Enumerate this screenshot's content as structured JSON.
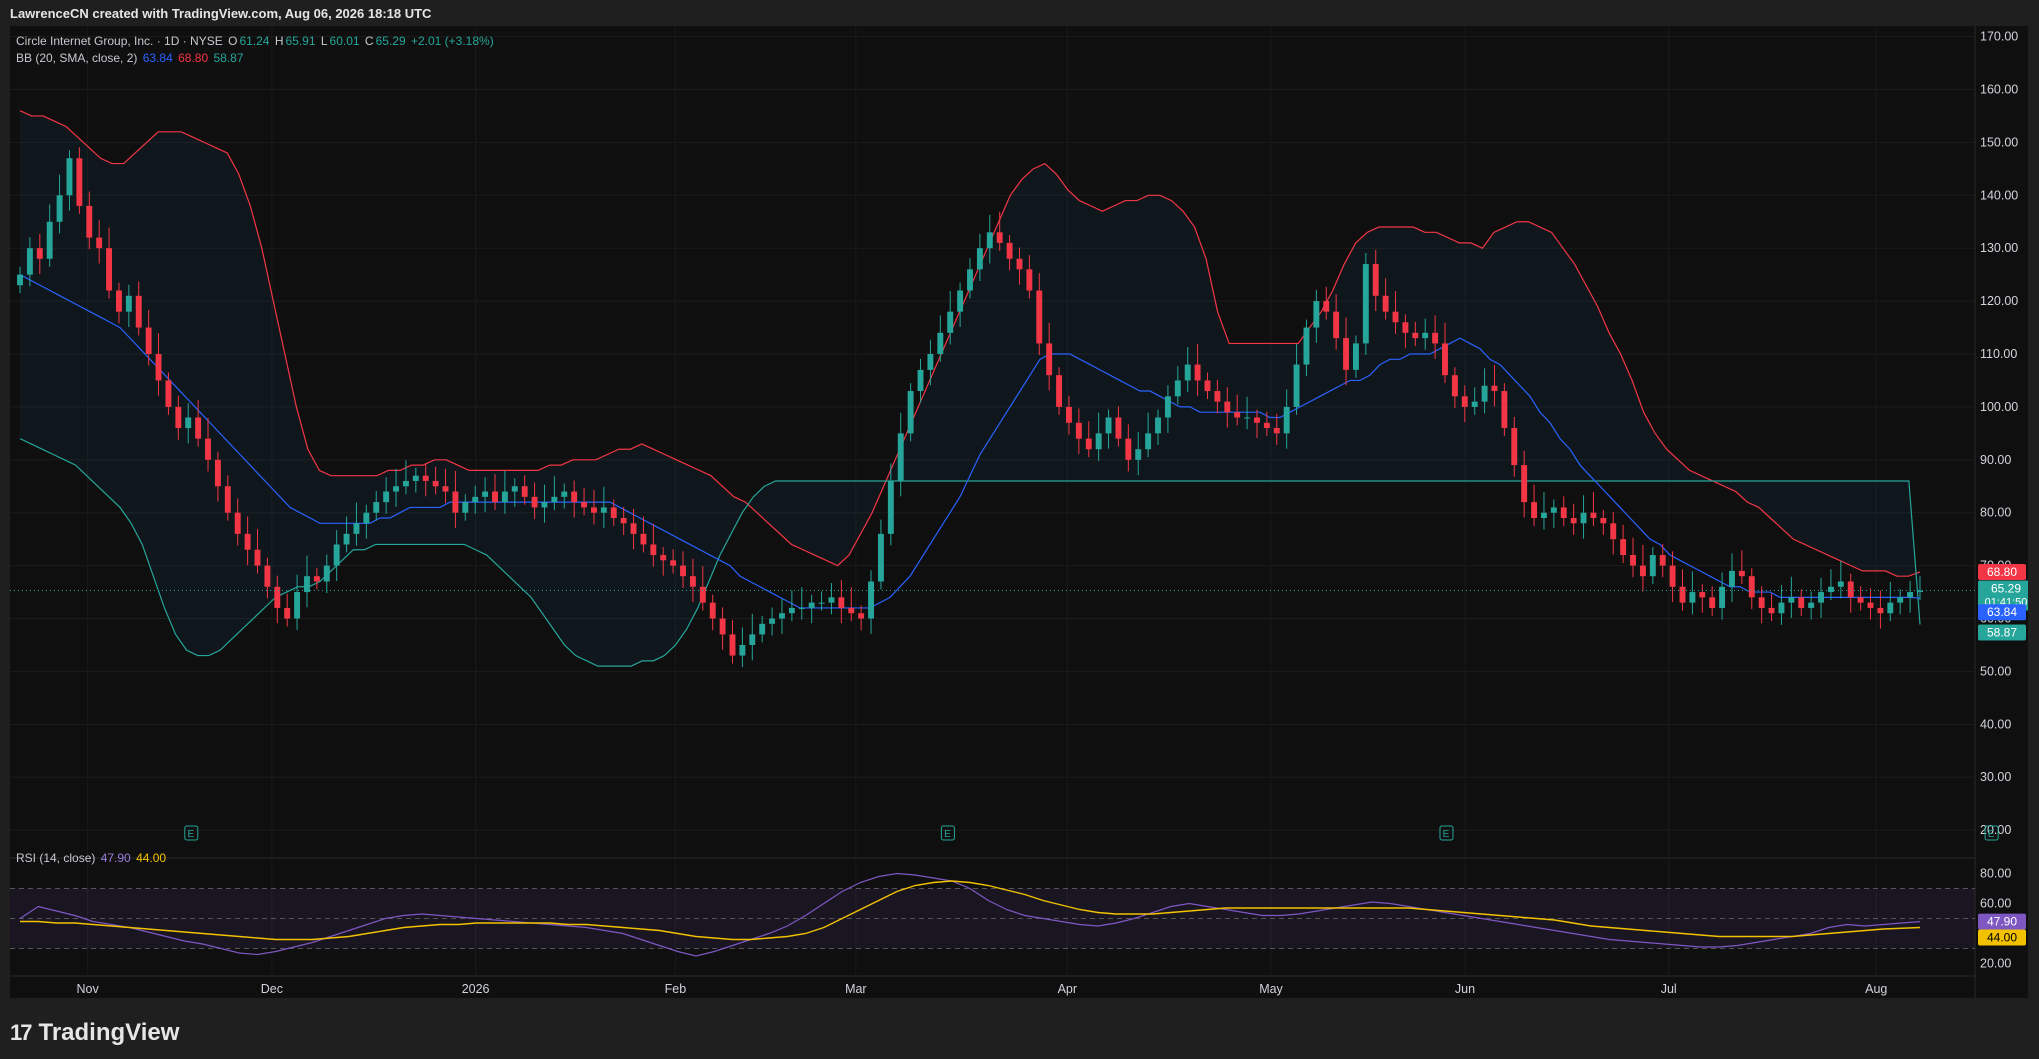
{
  "header": {
    "credit": "LawrenceCN created with TradingView.com, Aug 06, 2026 18:18 UTC"
  },
  "legend": {
    "symbol": "Circle Internet Group, Inc. · 1D · NYSE",
    "o_label": "O",
    "o": "61.24",
    "h_label": "H",
    "h": "65.91",
    "l_label": "L",
    "l": "60.01",
    "c_label": "C",
    "c": "65.29",
    "change": "+2.01 (+3.18%)",
    "bb_label": "BB (20, SMA, close, 2)",
    "bb_basis": "63.84",
    "bb_upper": "68.80",
    "bb_lower": "58.87",
    "rsi_label": "RSI (14, close)",
    "rsi": "47.90",
    "rsi_ma": "44.00"
  },
  "price_tags": {
    "upper": "68.80",
    "last": "65.29",
    "countdown": "01:41:50",
    "basis": "63.84",
    "lower": "58.87",
    "rsi": "47.90",
    "rsi_ma": "44.00"
  },
  "brand": {
    "name": "TradingView"
  },
  "colors": {
    "up": "#26a69a",
    "down": "#f23645",
    "basis": "#2962ff",
    "upper": "#f23645",
    "lower": "#26a69a",
    "rsi": "#7e57c2",
    "rsi_ma": "#f2c200",
    "bg": "#0f0f0f"
  },
  "chart_data": [
    {
      "type": "candlestick",
      "title": "Circle Internet Group, Inc. · 1D · NYSE",
      "x_labels": [
        "Nov",
        "Dec",
        "2026",
        "Feb",
        "Mar",
        "Apr",
        "May",
        "Jun",
        "Jul",
        "Aug"
      ],
      "y_ticks": [
        20,
        30,
        40,
        50,
        60,
        70,
        80,
        90,
        100,
        110,
        120,
        130,
        140,
        150,
        160,
        170
      ],
      "ylim": [
        17,
        172
      ],
      "grid": true,
      "event_markers": [
        "Nov",
        "Mar",
        "May",
        "Aug"
      ],
      "event_marker_glyph": "E",
      "close": [
        125,
        130,
        128,
        135,
        140,
        147,
        138,
        132,
        130,
        122,
        118,
        121,
        115,
        110,
        105,
        100,
        96,
        98,
        94,
        90,
        85,
        80,
        76,
        73,
        70,
        66,
        62,
        60,
        65,
        68,
        67,
        70,
        74,
        76,
        78,
        80,
        82,
        84,
        85,
        86,
        87,
        86,
        85,
        84,
        80,
        82,
        83,
        84,
        82,
        84,
        85,
        83,
        81,
        82,
        83,
        84,
        82,
        81,
        80,
        81,
        79,
        78,
        76,
        74,
        72,
        71,
        70,
        68,
        66,
        63,
        60,
        57,
        53,
        55,
        57,
        59,
        60,
        61,
        62,
        62,
        63,
        63,
        64,
        62,
        61,
        60,
        67,
        76,
        86,
        95,
        103,
        107,
        110,
        114,
        118,
        122,
        126,
        130,
        133,
        131,
        128,
        126,
        122,
        112,
        106,
        100,
        97,
        94,
        92,
        95,
        98,
        94,
        90,
        92,
        95,
        98,
        102,
        105,
        108,
        105,
        103,
        101,
        99,
        98,
        98,
        97,
        96,
        95,
        100,
        108,
        115,
        120,
        118,
        113,
        107,
        112,
        127,
        121,
        118,
        116,
        114,
        113,
        114,
        112,
        106,
        102,
        100,
        101,
        104,
        103,
        96,
        89,
        82,
        79,
        80,
        81,
        79,
        78,
        80,
        79,
        78,
        75,
        72,
        70,
        68,
        72,
        70,
        66,
        63,
        65,
        64,
        62,
        66,
        69,
        68,
        64,
        62,
        61,
        63,
        64,
        62,
        63,
        65,
        66,
        67,
        64,
        63,
        62,
        61,
        63,
        64,
        65,
        65.29
      ],
      "bb_basis": [
        125,
        124,
        123,
        122,
        121,
        120,
        119,
        118,
        117,
        116,
        115,
        113,
        111,
        109,
        107,
        105,
        103,
        101,
        99,
        97,
        95,
        93,
        91,
        89,
        87,
        85,
        83,
        81,
        80,
        79,
        78,
        78,
        78,
        78,
        78,
        78,
        79,
        79,
        80,
        81,
        81,
        81,
        81,
        82,
        82,
        82,
        82,
        82,
        82,
        82,
        82,
        82,
        82,
        82,
        82,
        82,
        82,
        82,
        82,
        82,
        81,
        80,
        79,
        78,
        77,
        76,
        75,
        74,
        73,
        72,
        71,
        70,
        68,
        67,
        66,
        65,
        64,
        63,
        62,
        62,
        62,
        62,
        62,
        62,
        62,
        62,
        63,
        64,
        66,
        68,
        71,
        74,
        77,
        80,
        83,
        87,
        91,
        94,
        97,
        100,
        103,
        106,
        109,
        110,
        110,
        110,
        109,
        108,
        107,
        106,
        105,
        104,
        103,
        103,
        102,
        101,
        100,
        100,
        99,
        99,
        99,
        99,
        99,
        99,
        99,
        98,
        98,
        99,
        100,
        101,
        102,
        103,
        104,
        105,
        105,
        106,
        108,
        109,
        109,
        110,
        110,
        110,
        111,
        112,
        113,
        112,
        111,
        109,
        108,
        106,
        104,
        102,
        99,
        97,
        94,
        92,
        89,
        87,
        85,
        83,
        81,
        79,
        77,
        75,
        74,
        72,
        71,
        70,
        69,
        68,
        67,
        66,
        66,
        65,
        65,
        65,
        64,
        64,
        64,
        64,
        64,
        64,
        64,
        64,
        64,
        64,
        64,
        64,
        64,
        64,
        63.84
      ],
      "bb_upper": [
        156,
        155,
        155,
        154,
        153,
        151,
        149,
        147,
        146,
        146,
        148,
        150,
        152,
        152,
        152,
        151,
        150,
        149,
        148,
        144,
        138,
        130,
        120,
        110,
        100,
        92,
        88,
        87,
        87,
        87,
        87,
        87,
        88,
        88,
        89,
        89,
        90,
        90,
        89,
        88,
        88,
        88,
        88,
        88,
        88,
        88,
        89,
        89,
        90,
        90,
        90,
        91,
        92,
        92,
        93,
        92,
        91,
        90,
        89,
        88,
        87,
        85,
        83,
        82,
        80,
        78,
        76,
        74,
        73,
        72,
        71,
        70,
        72,
        76,
        80,
        85,
        90,
        95,
        100,
        105,
        110,
        115,
        120,
        125,
        130,
        135,
        140,
        143,
        145,
        146,
        144,
        141,
        139,
        138,
        137,
        138,
        139,
        139,
        140,
        140,
        139,
        137,
        134,
        128,
        118,
        112,
        112,
        112,
        112,
        112,
        112,
        112,
        115,
        118,
        122,
        127,
        131,
        133,
        134,
        134,
        134,
        134,
        133,
        133,
        132,
        131,
        131,
        130,
        133,
        134,
        135,
        135,
        134,
        133,
        130,
        127,
        123,
        119,
        114,
        110,
        105,
        99,
        95,
        92,
        90,
        88,
        87,
        86,
        85,
        84,
        82,
        81,
        79,
        77,
        75,
        74,
        73,
        72,
        71,
        70,
        69,
        69,
        69,
        68,
        68,
        68.8
      ],
      "bb_lower": [
        94,
        93,
        92,
        91,
        90,
        89,
        87,
        85,
        83,
        81,
        78,
        74,
        68,
        62,
        57,
        54,
        53,
        53,
        54,
        56,
        58,
        60,
        62,
        64,
        65,
        66,
        66,
        67,
        69,
        71,
        73,
        73,
        74,
        74,
        74,
        74,
        74,
        74,
        74,
        74,
        74,
        73,
        72,
        70,
        68,
        66,
        64,
        61,
        58,
        55,
        53,
        52,
        51,
        51,
        51,
        51,
        52,
        52,
        53,
        55,
        58,
        62,
        67,
        72,
        76,
        80,
        83,
        85,
        86,
        86,
        86,
        86,
        86,
        86,
        86,
        86,
        86,
        86,
        86,
        86,
        86,
        86,
        86,
        86,
        86,
        86,
        86,
        86,
        86,
        86,
        86,
        86,
        86,
        86,
        86,
        86,
        86,
        86,
        86,
        86,
        86,
        86,
        86,
        86,
        86,
        86,
        86,
        86,
        86,
        86,
        86,
        86,
        86,
        86,
        86,
        86,
        86,
        86,
        86,
        86,
        86,
        86,
        86,
        86,
        86,
        86,
        86,
        86,
        86,
        86,
        86,
        86,
        86,
        86,
        86,
        86,
        86,
        86,
        86,
        86,
        86,
        86,
        86,
        86,
        86,
        86,
        86,
        86,
        86,
        86,
        86,
        86,
        86,
        86,
        86,
        86,
        86,
        86,
        86,
        86,
        86,
        86,
        86,
        86,
        86,
        86,
        86,
        86,
        86,
        86,
        86,
        58.87
      ]
    },
    {
      "type": "line",
      "title": "RSI (14, close)",
      "y_ticks": [
        20,
        40,
        60,
        80
      ],
      "band": [
        30,
        70
      ],
      "midline": 50,
      "series": [
        {
          "name": "RSI",
          "values": [
            50,
            58,
            55,
            52,
            48,
            46,
            44,
            41,
            38,
            35,
            33,
            30,
            27,
            26,
            28,
            31,
            34,
            38,
            42,
            46,
            50,
            52,
            53,
            52,
            51,
            50,
            49,
            48,
            47,
            46,
            45,
            44,
            42,
            40,
            36,
            32,
            28,
            25,
            28,
            32,
            36,
            40,
            45,
            52,
            60,
            68,
            74,
            78,
            80,
            79,
            77,
            75,
            70,
            62,
            56,
            52,
            50,
            48,
            46,
            45,
            47,
            50,
            54,
            58,
            60,
            58,
            56,
            54,
            52,
            52,
            53,
            55,
            57,
            59,
            61,
            60,
            58,
            56,
            54,
            52,
            50,
            48,
            46,
            44,
            42,
            40,
            38,
            36,
            35,
            34,
            33,
            32,
            31,
            31,
            32,
            34,
            36,
            38,
            40,
            44,
            46,
            45,
            46,
            47,
            47.9
          ]
        },
        {
          "name": "RSI MA",
          "values": [
            48,
            48,
            47,
            47,
            46,
            45,
            44,
            43,
            42,
            41,
            40,
            39,
            38,
            37,
            36,
            36,
            36,
            37,
            38,
            40,
            42,
            44,
            45,
            46,
            46,
            47,
            47,
            47,
            47,
            47,
            46,
            46,
            45,
            44,
            43,
            42,
            40,
            38,
            37,
            36,
            36,
            37,
            38,
            40,
            44,
            50,
            56,
            62,
            68,
            72,
            74,
            75,
            74,
            72,
            69,
            66,
            62,
            59,
            56,
            54,
            53,
            53,
            53,
            54,
            55,
            56,
            57,
            57,
            57,
            57,
            57,
            57,
            57,
            57,
            57,
            57,
            57,
            56,
            55,
            54,
            53,
            52,
            51,
            50,
            49,
            47,
            45,
            44,
            43,
            42,
            41,
            40,
            39,
            38,
            38,
            38,
            38,
            38,
            39,
            40,
            41,
            42,
            43,
            43.5,
            44
          ]
        }
      ]
    }
  ]
}
